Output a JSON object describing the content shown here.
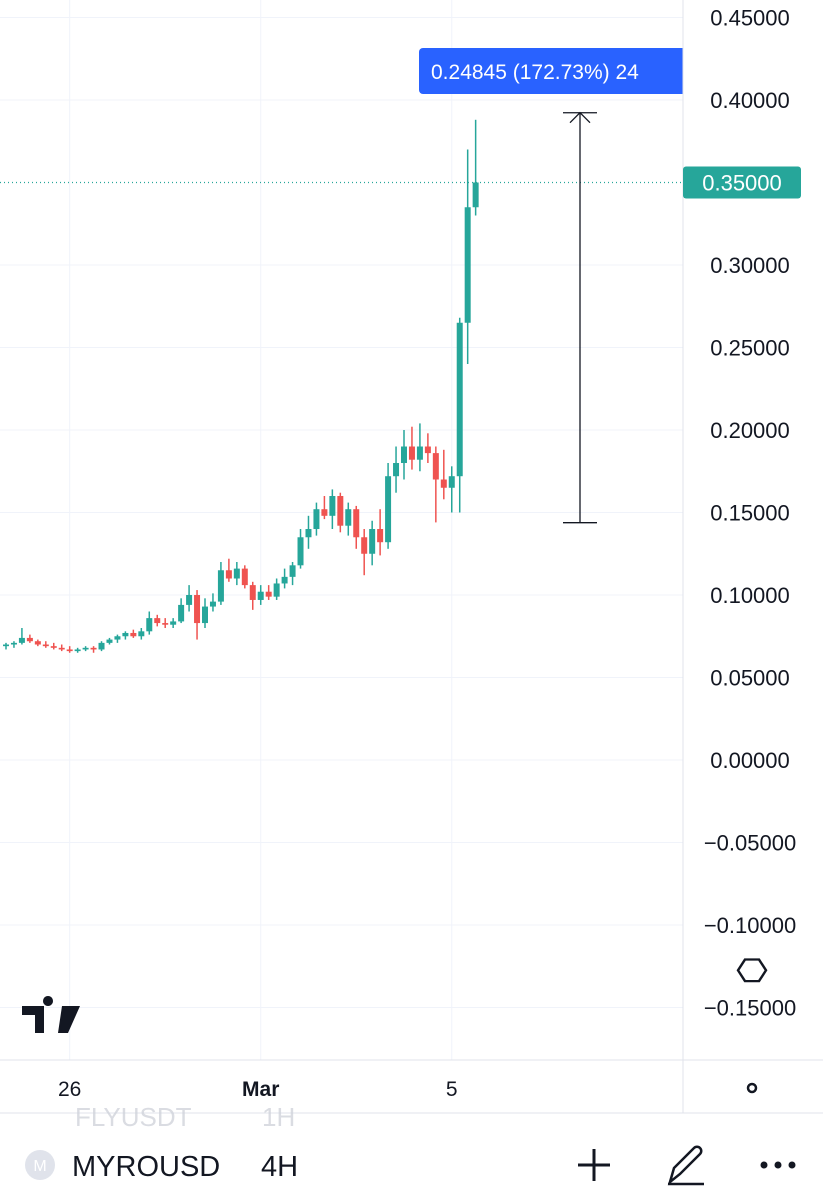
{
  "chart_data": {
    "type": "candlestick",
    "categories": [
      null,
      null,
      null,
      null,
      null,
      null,
      null,
      null,
      "26",
      null,
      null,
      null,
      null,
      null,
      null,
      null,
      null,
      null,
      null,
      null,
      null,
      null,
      null,
      null,
      null,
      null,
      null,
      null,
      null,
      null,
      null,
      null,
      "Mar",
      null,
      null,
      null,
      null,
      null,
      null,
      null,
      null,
      null,
      null,
      null,
      null,
      null,
      null,
      null,
      null,
      null,
      null,
      null,
      null,
      null,
      null,
      null,
      "5",
      null,
      null,
      null
    ],
    "open": [
      0.069,
      0.07,
      0.071,
      0.074,
      0.072,
      0.07,
      0.069,
      0.068,
      0.067,
      0.066,
      0.067,
      0.068,
      0.067,
      0.071,
      0.073,
      0.075,
      0.077,
      0.075,
      0.078,
      0.086,
      0.083,
      0.082,
      0.084,
      0.094,
      0.1,
      0.083,
      0.093,
      0.096,
      0.115,
      0.11,
      0.116,
      0.106,
      0.097,
      0.102,
      0.099,
      0.107,
      0.111,
      0.118,
      0.135,
      0.14,
      0.152,
      0.148,
      0.16,
      0.142,
      0.152,
      0.135,
      0.125,
      0.14,
      0.132,
      0.172,
      0.18,
      0.19,
      0.182,
      0.19,
      0.186,
      0.17,
      0.165,
      0.172,
      0.265,
      0.335
    ],
    "high": [
      0.071,
      0.072,
      0.08,
      0.076,
      0.073,
      0.072,
      0.071,
      0.07,
      0.069,
      0.068,
      0.069,
      0.069,
      0.072,
      0.074,
      0.076,
      0.078,
      0.079,
      0.08,
      0.09,
      0.088,
      0.086,
      0.086,
      0.098,
      0.106,
      0.103,
      0.098,
      0.101,
      0.12,
      0.122,
      0.12,
      0.118,
      0.108,
      0.106,
      0.106,
      0.11,
      0.116,
      0.12,
      0.14,
      0.148,
      0.156,
      0.16,
      0.164,
      0.162,
      0.156,
      0.154,
      0.14,
      0.145,
      0.152,
      0.18,
      0.19,
      0.2,
      0.202,
      0.204,
      0.198,
      0.19,
      0.188,
      0.178,
      0.268,
      0.37,
      0.388
    ],
    "low": [
      0.067,
      0.068,
      0.07,
      0.071,
      0.069,
      0.068,
      0.067,
      0.066,
      0.065,
      0.065,
      0.066,
      0.065,
      0.066,
      0.07,
      0.071,
      0.073,
      0.074,
      0.073,
      0.076,
      0.081,
      0.08,
      0.08,
      0.083,
      0.09,
      0.073,
      0.08,
      0.09,
      0.094,
      0.108,
      0.106,
      0.104,
      0.091,
      0.094,
      0.097,
      0.097,
      0.104,
      0.106,
      0.116,
      0.128,
      0.136,
      0.146,
      0.14,
      0.138,
      0.136,
      0.128,
      0.112,
      0.118,
      0.124,
      0.128,
      0.162,
      0.17,
      0.176,
      0.175,
      0.18,
      0.144,
      0.158,
      0.15,
      0.15,
      0.24,
      0.33
    ],
    "close": [
      0.07,
      0.071,
      0.074,
      0.072,
      0.07,
      0.069,
      0.068,
      0.067,
      0.066,
      0.067,
      0.068,
      0.067,
      0.071,
      0.073,
      0.075,
      0.077,
      0.075,
      0.078,
      0.086,
      0.083,
      0.082,
      0.084,
      0.094,
      0.1,
      0.083,
      0.093,
      0.096,
      0.115,
      0.11,
      0.116,
      0.106,
      0.097,
      0.102,
      0.099,
      0.107,
      0.111,
      0.118,
      0.135,
      0.14,
      0.152,
      0.148,
      0.16,
      0.142,
      0.152,
      0.135,
      0.125,
      0.14,
      0.132,
      0.172,
      0.18,
      0.19,
      0.182,
      0.19,
      0.186,
      0.17,
      0.165,
      0.172,
      0.265,
      0.335,
      0.35
    ],
    "up_color": "#26a69a",
    "down_color": "#ef5350",
    "ylim": [
      -0.1818,
      0.4606
    ],
    "yticks": [
      {
        "value": 0.45,
        "label": "0.45000"
      },
      {
        "value": 0.4,
        "label": "0.40000"
      },
      {
        "value": 0.3,
        "label": "0.30000"
      },
      {
        "value": 0.25,
        "label": "0.25000"
      },
      {
        "value": 0.2,
        "label": "0.20000"
      },
      {
        "value": 0.15,
        "label": "0.15000"
      },
      {
        "value": 0.1,
        "label": "0.10000"
      },
      {
        "value": 0.05,
        "label": "0.05000"
      },
      {
        "value": 0,
        "label": "0.00000"
      },
      {
        "value": -0.05,
        "label": "−0.05000"
      },
      {
        "value": -0.1,
        "label": "−0.10000"
      },
      {
        "value": -0.15,
        "label": "−0.15000"
      }
    ],
    "grid": true,
    "last_price": {
      "value": 0.35,
      "label": "0.35000",
      "color": "#26a69a"
    },
    "measure": {
      "from": 0.14384,
      "to": 0.39229,
      "label": "0.24845 (172.73%) 24",
      "color": "#2962ff"
    }
  },
  "ghost_symbol": {
    "symbol": "FLYUSDT",
    "interval": "1H"
  },
  "toolbar": {
    "icon": "M",
    "symbol": "MYROUSD",
    "interval": "4H"
  }
}
